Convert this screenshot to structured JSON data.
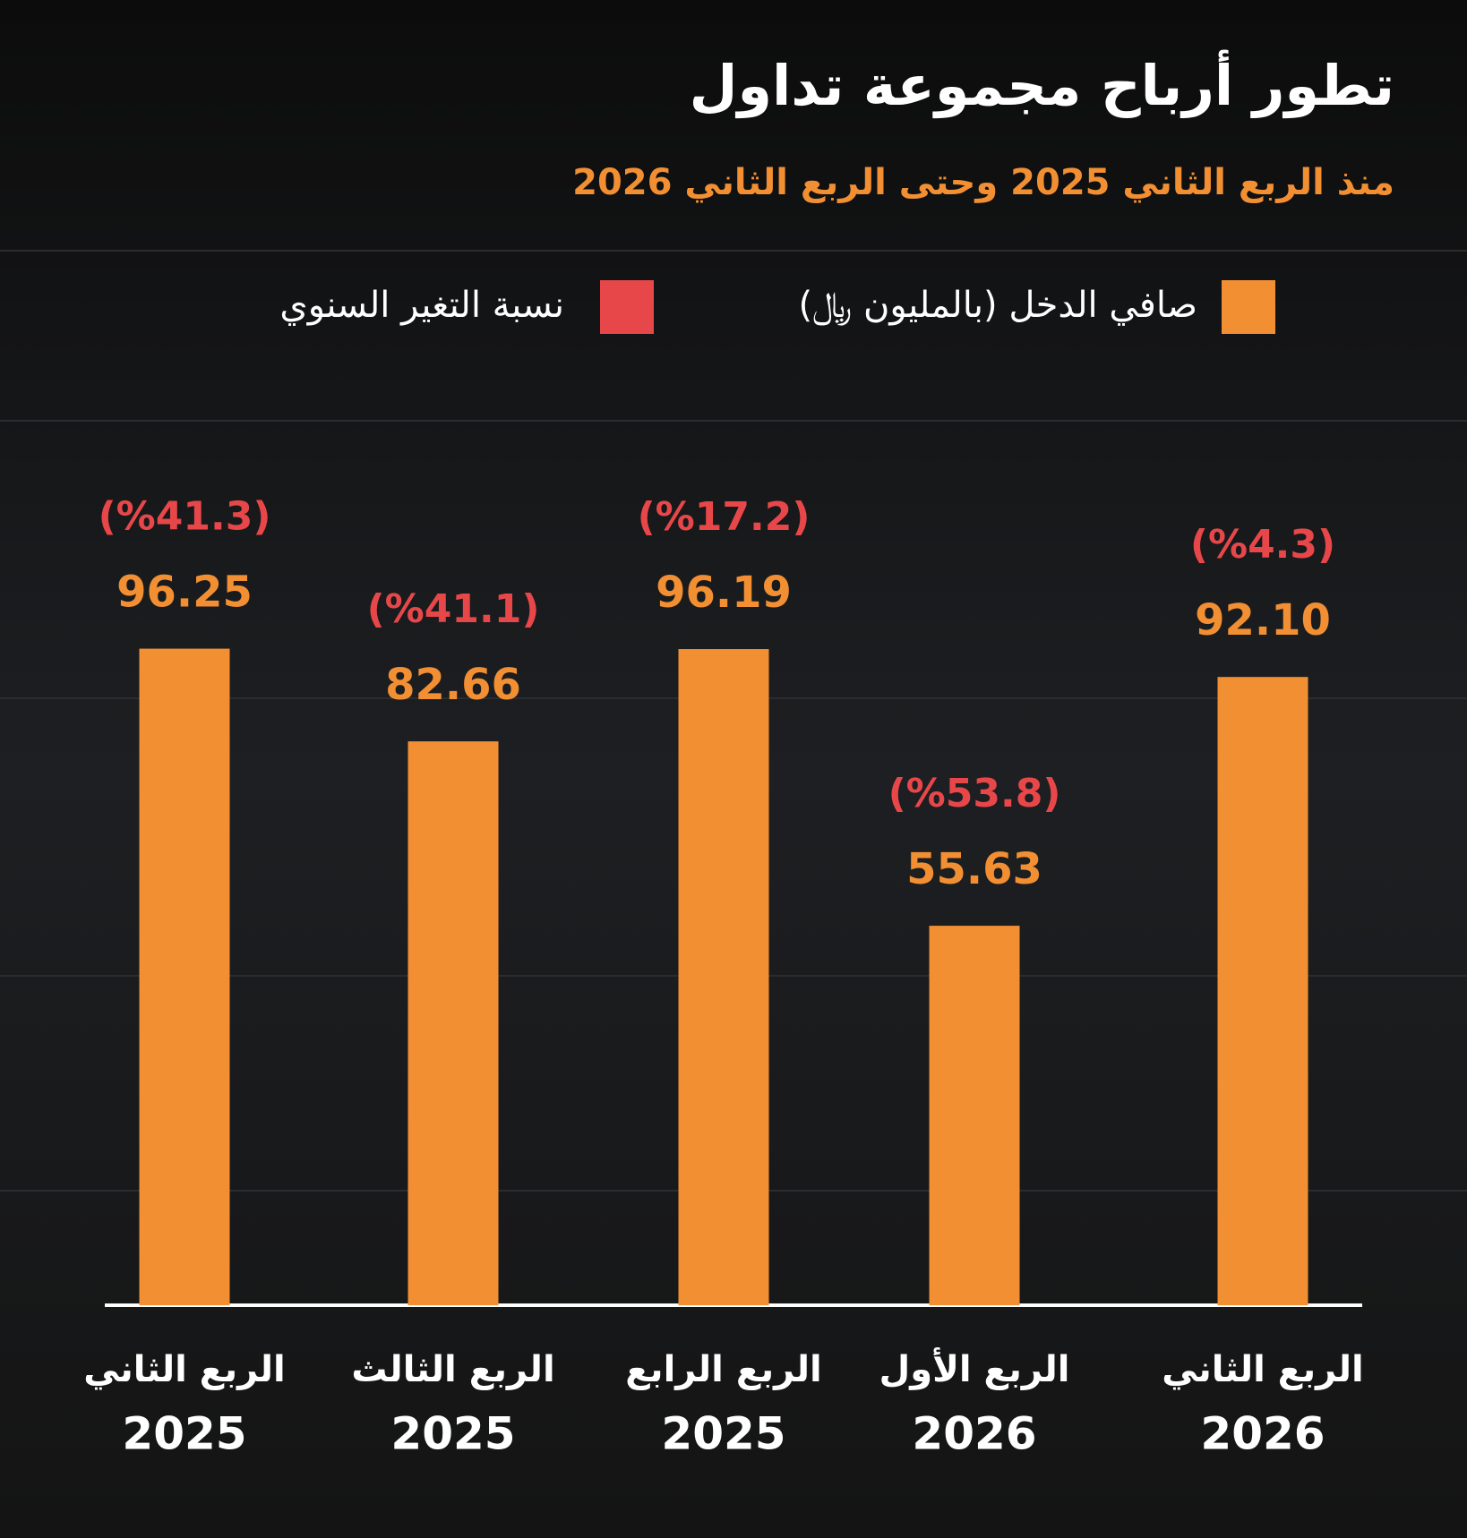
{
  "chart_data": {
    "type": "bar",
    "title": "تطور أرباح مجموعة تداول",
    "subtitle": "منذ الربع الثاني 2025 وحتى الربع الثاني 2026",
    "categories": [
      [
        "الربع الثاني",
        "2025"
      ],
      [
        "الربع الثالث",
        "2025"
      ],
      [
        "الربع الرابع",
        "2025"
      ],
      [
        "الربع الأول",
        "2026"
      ],
      [
        "الربع الثاني",
        "2026"
      ]
    ],
    "series": [
      {
        "name": "صافي الدخل (بالمليون ﷼)",
        "color": "#f28f33",
        "values": [
          96.25,
          82.66,
          96.19,
          55.63,
          92.1
        ],
        "value_labels": [
          "96.25",
          "82.66",
          "96.19",
          "55.63",
          "92.10"
        ]
      },
      {
        "name": "نسبة التغير السنوي",
        "color": "#e8474a",
        "values": [
          -41.3,
          -41.1,
          -17.2,
          -53.8,
          -4.3
        ],
        "value_labels": [
          "(%41.3)",
          "(%41.1)",
          "(%17.2)",
          "(%53.8)",
          "(%4.3)"
        ]
      }
    ],
    "ylim": [
      0,
      100
    ]
  }
}
